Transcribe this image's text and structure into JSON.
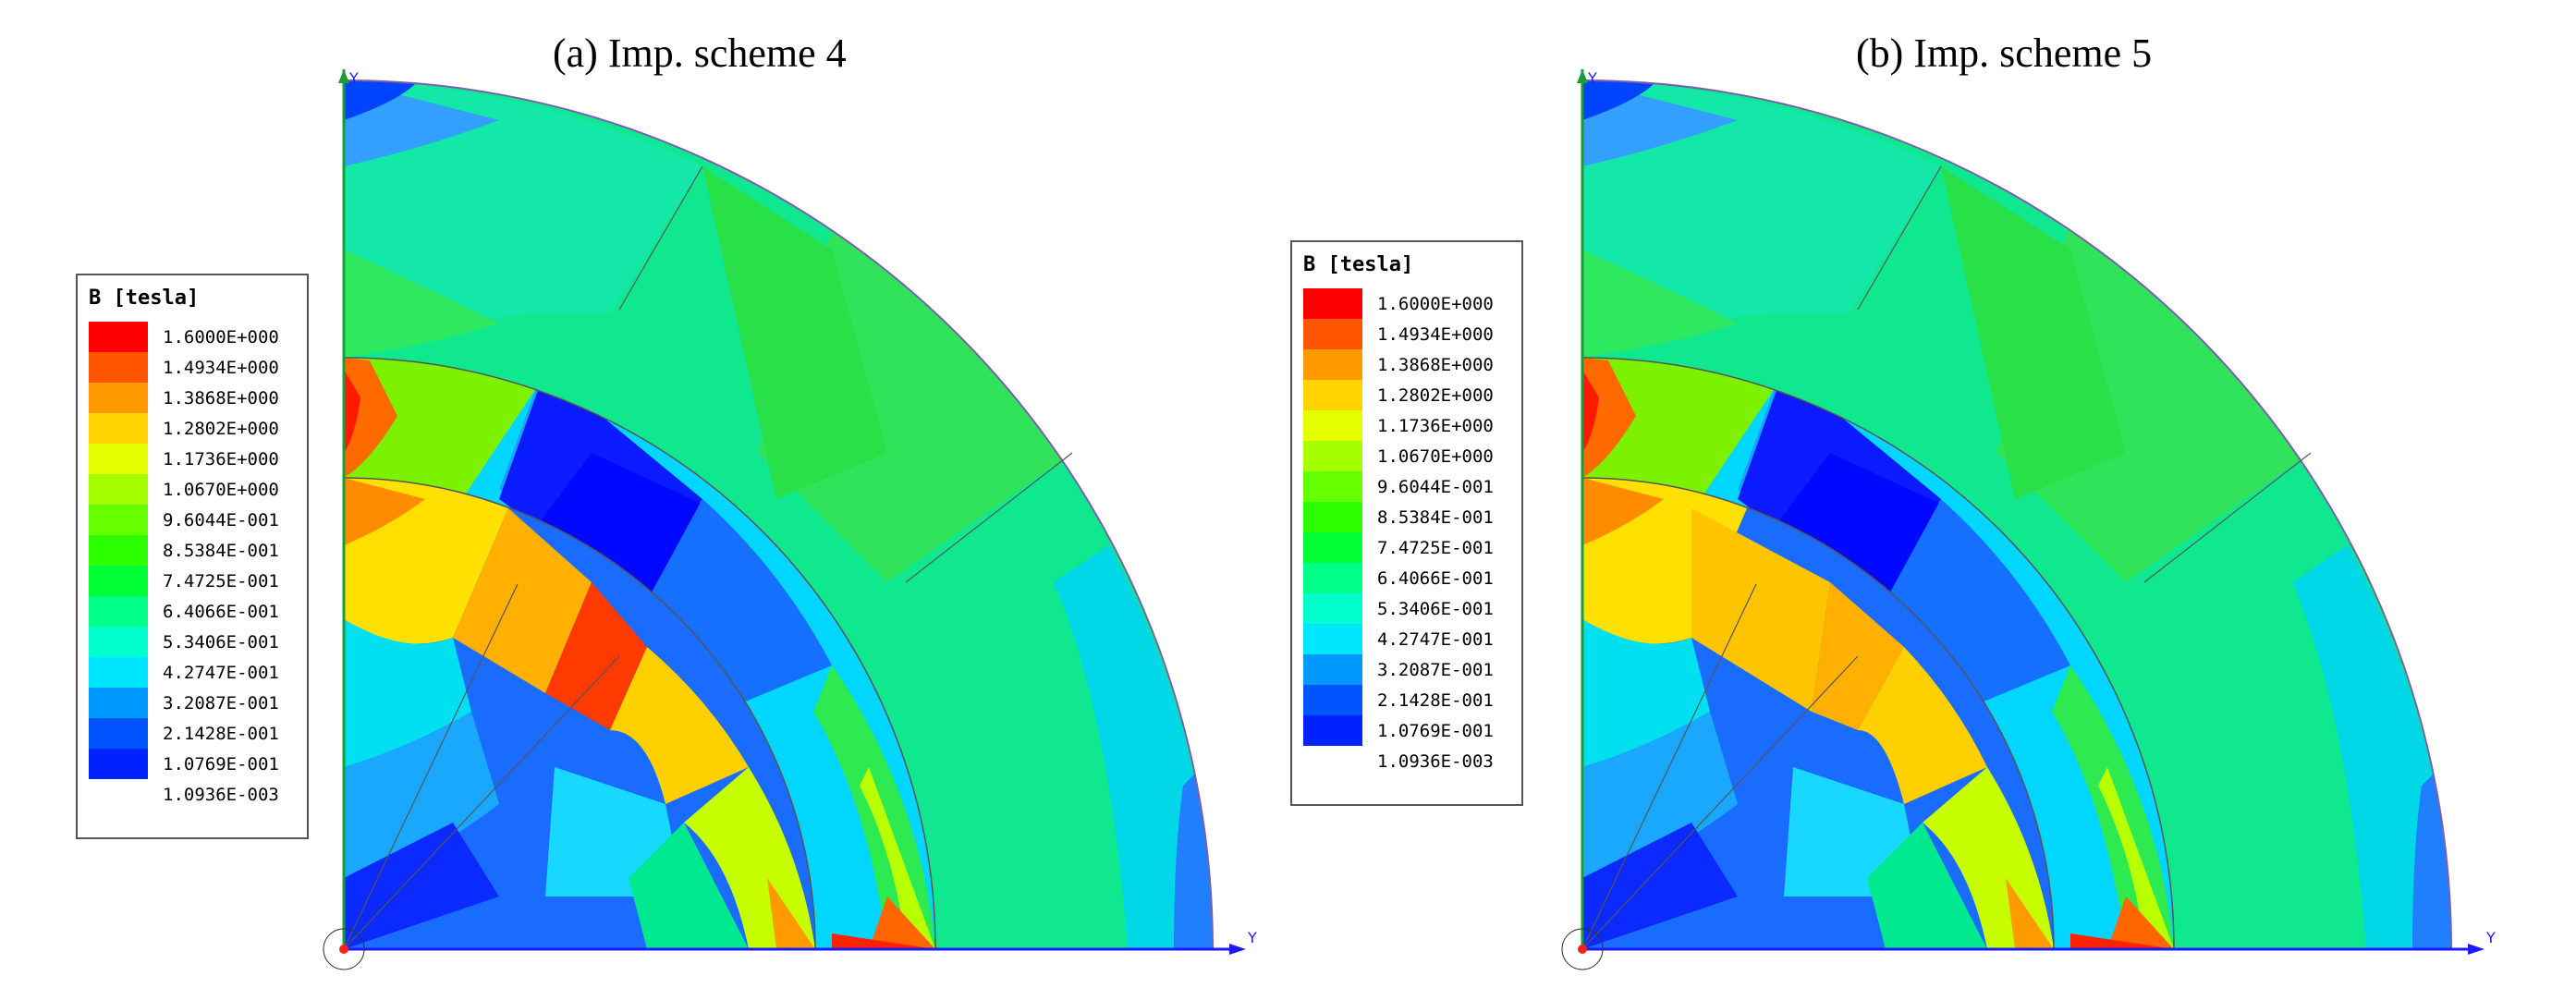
{
  "panels": [
    {
      "title": "(a) Imp. scheme 4",
      "legend": {
        "title": "B [tesla]",
        "entries": [
          {
            "label": "1.6000E+000",
            "color": "#ff0000"
          },
          {
            "label": "1.4934E+000",
            "color": "#ff5500"
          },
          {
            "label": "1.3868E+000",
            "color": "#ff9900"
          },
          {
            "label": "1.2802E+000",
            "color": "#ffd400"
          },
          {
            "label": "1.1736E+000",
            "color": "#e6ff00"
          },
          {
            "label": "1.0670E+000",
            "color": "#a6ff00"
          },
          {
            "label": "9.6044E-001",
            "color": "#66ff00"
          },
          {
            "label": "8.5384E-001",
            "color": "#2bff00"
          },
          {
            "label": "7.4725E-001",
            "color": "#00ff33"
          },
          {
            "label": "6.4066E-001",
            "color": "#00ff88"
          },
          {
            "label": "5.3406E-001",
            "color": "#00ffcc"
          },
          {
            "label": "4.2747E-001",
            "color": "#00e6ff"
          },
          {
            "label": "3.2087E-001",
            "color": "#0099ff"
          },
          {
            "label": "2.1428E-001",
            "color": "#0055ff"
          },
          {
            "label": "1.0769E-001",
            "color": "#0022ff"
          },
          {
            "label": "1.0936E-003",
            "color": null
          }
        ]
      },
      "axes": {
        "y_top": "Y",
        "y_right": "Y"
      }
    },
    {
      "title": "(b) Imp. scheme 5",
      "legend": {
        "title": "B [tesla]",
        "entries": [
          {
            "label": "1.6000E+000",
            "color": "#ff0000"
          },
          {
            "label": "1.4934E+000",
            "color": "#ff5500"
          },
          {
            "label": "1.3868E+000",
            "color": "#ff9900"
          },
          {
            "label": "1.2802E+000",
            "color": "#ffd400"
          },
          {
            "label": "1.1736E+000",
            "color": "#e6ff00"
          },
          {
            "label": "1.0670E+000",
            "color": "#a6ff00"
          },
          {
            "label": "9.6044E-001",
            "color": "#66ff00"
          },
          {
            "label": "8.5384E-001",
            "color": "#2bff00"
          },
          {
            "label": "7.4725E-001",
            "color": "#00ff33"
          },
          {
            "label": "6.4066E-001",
            "color": "#00ff88"
          },
          {
            "label": "5.3406E-001",
            "color": "#00ffcc"
          },
          {
            "label": "4.2747E-001",
            "color": "#00e6ff"
          },
          {
            "label": "3.2087E-001",
            "color": "#0099ff"
          },
          {
            "label": "2.1428E-001",
            "color": "#0055ff"
          },
          {
            "label": "1.0769E-001",
            "color": "#0022ff"
          },
          {
            "label": "1.0936E-003",
            "color": null
          }
        ]
      },
      "axes": {
        "y_top": "Y",
        "y_right": "Y"
      }
    }
  ]
}
